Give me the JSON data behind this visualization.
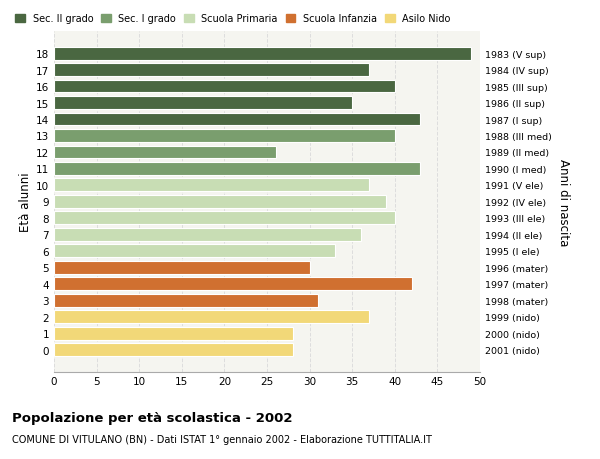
{
  "ages": [
    18,
    17,
    16,
    15,
    14,
    13,
    12,
    11,
    10,
    9,
    8,
    7,
    6,
    5,
    4,
    3,
    2,
    1,
    0
  ],
  "values": [
    49,
    37,
    40,
    35,
    43,
    40,
    26,
    43,
    37,
    39,
    40,
    36,
    33,
    30,
    42,
    31,
    37,
    28,
    28
  ],
  "right_labels": [
    "1983 (V sup)",
    "1984 (IV sup)",
    "1985 (III sup)",
    "1986 (II sup)",
    "1987 (I sup)",
    "1988 (III med)",
    "1989 (II med)",
    "1990 (I med)",
    "1991 (V ele)",
    "1992 (IV ele)",
    "1993 (III ele)",
    "1994 (II ele)",
    "1995 (I ele)",
    "1996 (mater)",
    "1997 (mater)",
    "1998 (mater)",
    "1999 (nido)",
    "2000 (nido)",
    "2001 (nido)"
  ],
  "bar_colors": [
    "#4a6741",
    "#4a6741",
    "#4a6741",
    "#4a6741",
    "#4a6741",
    "#7a9e6e",
    "#7a9e6e",
    "#7a9e6e",
    "#c8ddb4",
    "#c8ddb4",
    "#c8ddb4",
    "#c8ddb4",
    "#c8ddb4",
    "#d07030",
    "#d07030",
    "#d07030",
    "#f2d878",
    "#f2d878",
    "#f2d878"
  ],
  "legend_labels": [
    "Sec. II grado",
    "Sec. I grado",
    "Scuola Primaria",
    "Scuola Infanzia",
    "Asilo Nido"
  ],
  "legend_colors": [
    "#4a6741",
    "#7a9e6e",
    "#c8ddb4",
    "#d07030",
    "#f2d878"
  ],
  "ylabel_left": "Età alunni",
  "ylabel_right": "Anni di nascita",
  "title": "Popolazione per età scolastica - 2002",
  "subtitle": "COMUNE DI VITULANO (BN) - Dati ISTAT 1° gennaio 2002 - Elaborazione TUTTITALIA.IT",
  "xlim": [
    0,
    50
  ],
  "xticks": [
    0,
    5,
    10,
    15,
    20,
    25,
    30,
    35,
    40,
    45,
    50
  ],
  "background_color": "#ffffff",
  "plot_bg_color": "#f5f5f0",
  "grid_color": "#dddddd",
  "bar_height": 0.78
}
